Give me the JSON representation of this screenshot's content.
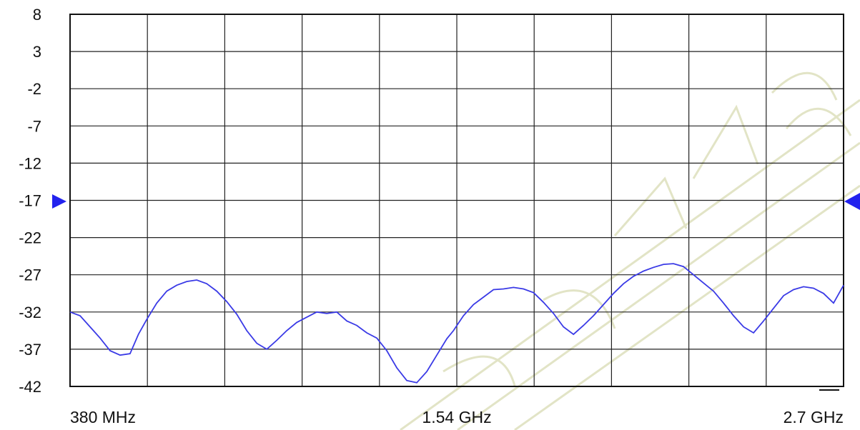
{
  "chart_data": {
    "type": "line",
    "title": "",
    "xlabel": "",
    "ylabel": "",
    "xlim": [
      380,
      2700
    ],
    "ylim": [
      -42,
      8
    ],
    "grid": true,
    "y_ticks": [
      "8",
      "3",
      "-2",
      "-7",
      "-12",
      "-17",
      "-22",
      "-27",
      "-32",
      "-37",
      "-42"
    ],
    "x_tick_labels": [
      "380 MHz",
      "1.54 GHz",
      "2.7 GHz"
    ],
    "x_tick_values": [
      380,
      1540,
      2700
    ],
    "reference_level": -17,
    "line_color": "#3a3ae6",
    "marker_color": "#2222ee",
    "series": [
      {
        "x": [
          380,
          410,
          440,
          470,
          500,
          530,
          560,
          585,
          610,
          640,
          670,
          700,
          730,
          760,
          790,
          820,
          850,
          880,
          910,
          940,
          970,
          1000,
          1030,
          1060,
          1090,
          1120,
          1150,
          1180,
          1210,
          1240,
          1270,
          1300,
          1330,
          1360,
          1390,
          1420,
          1450,
          1480,
          1510,
          1530,
          1545,
          1560,
          1590,
          1620,
          1650,
          1680,
          1710,
          1740,
          1770,
          1800,
          1830,
          1860,
          1890,
          1920,
          1950,
          1980,
          2010,
          2040,
          2070,
          2100,
          2130,
          2160,
          2190,
          2220,
          2250,
          2280,
          2310,
          2340,
          2370,
          2400,
          2430,
          2460,
          2490,
          2520,
          2550,
          2580,
          2610,
          2640,
          2670,
          2700
        ],
        "y": [
          -32.0,
          -32.5,
          -34.0,
          -35.5,
          -37.2,
          -37.8,
          -37.6,
          -35.0,
          -33.0,
          -30.8,
          -29.2,
          -28.4,
          -27.9,
          -27.7,
          -28.2,
          -29.2,
          -30.6,
          -32.3,
          -34.5,
          -36.2,
          -37.0,
          -35.8,
          -34.5,
          -33.4,
          -32.7,
          -32.0,
          -32.2,
          -32.0,
          -33.2,
          -33.8,
          -34.8,
          -35.5,
          -37.2,
          -39.5,
          -41.2,
          -41.5,
          -40.0,
          -37.8,
          -35.6,
          -34.5,
          -33.5,
          -32.5,
          -31.0,
          -30.0,
          -29.0,
          -28.9,
          -28.7,
          -28.9,
          -29.4,
          -30.7,
          -32.2,
          -34.0,
          -35.0,
          -33.8,
          -32.5,
          -31.0,
          -29.5,
          -28.2,
          -27.2,
          -26.5,
          -26.0,
          -25.6,
          -25.5,
          -25.9,
          -27.0,
          -28.1,
          -29.2,
          -30.8,
          -32.5,
          -34.0,
          -34.8,
          -33.2,
          -31.5,
          -29.8,
          -29.0,
          -28.6,
          -28.8,
          -29.5,
          -30.8,
          -28.4
        ]
      }
    ]
  }
}
